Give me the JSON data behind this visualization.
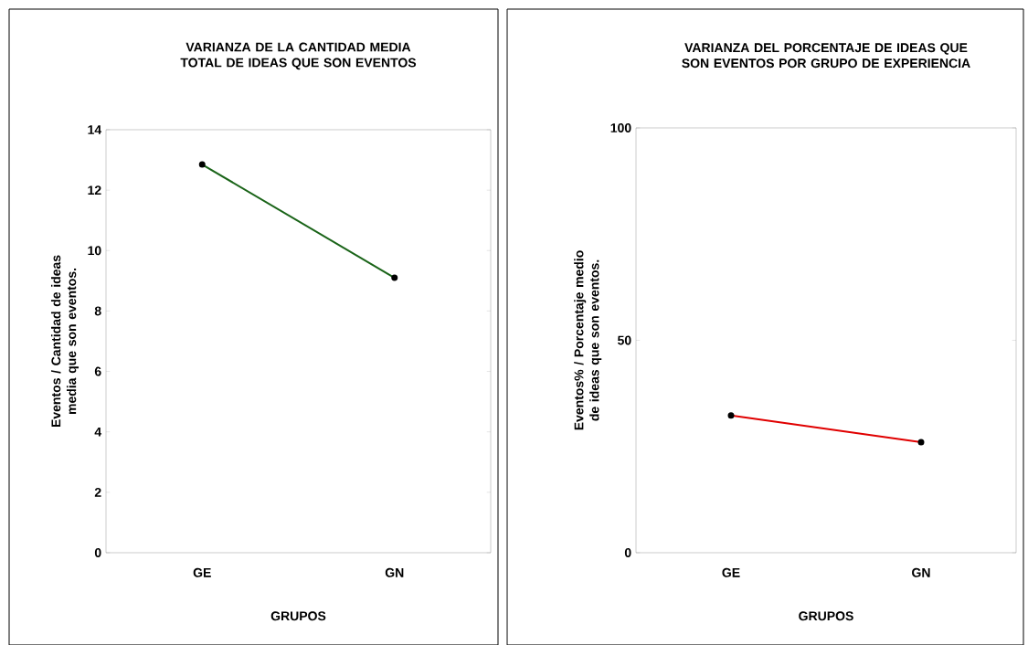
{
  "chart_data": [
    {
      "type": "line",
      "title": "VARIANZA DE LA CANTIDAD MEDIA TOTAL DE IDEAS QUE SON EVENTOS",
      "xlabel": "GRUPOS",
      "ylabel": "Eventos / Cantidad de ideas media que son eventos.",
      "categories": [
        "GE",
        "GN"
      ],
      "series": [
        {
          "color": "#1a6418",
          "values": [
            12.85,
            9.1
          ]
        }
      ],
      "ylim": [
        0,
        14
      ],
      "yticks": [
        0,
        2,
        4,
        6,
        8,
        10,
        12,
        14
      ],
      "grid": false,
      "marker": "circle",
      "line_style": "solid"
    },
    {
      "type": "line",
      "title": "VARIANZA DEL PORCENTAJE DE IDEAS QUE SON EVENTOS POR GRUPO DE EXPERIENCIA",
      "xlabel": "GRUPOS",
      "ylabel": "Eventos% / Porcentaje medio de ideas que son eventos.",
      "categories": [
        "GE",
        "GN"
      ],
      "series": [
        {
          "color": "#e00000",
          "values": [
            32.3,
            26
          ]
        }
      ],
      "ylim": [
        0,
        100
      ],
      "yticks": [
        0,
        50,
        100
      ],
      "grid": false,
      "marker": "circle",
      "line_style": "solid"
    }
  ]
}
